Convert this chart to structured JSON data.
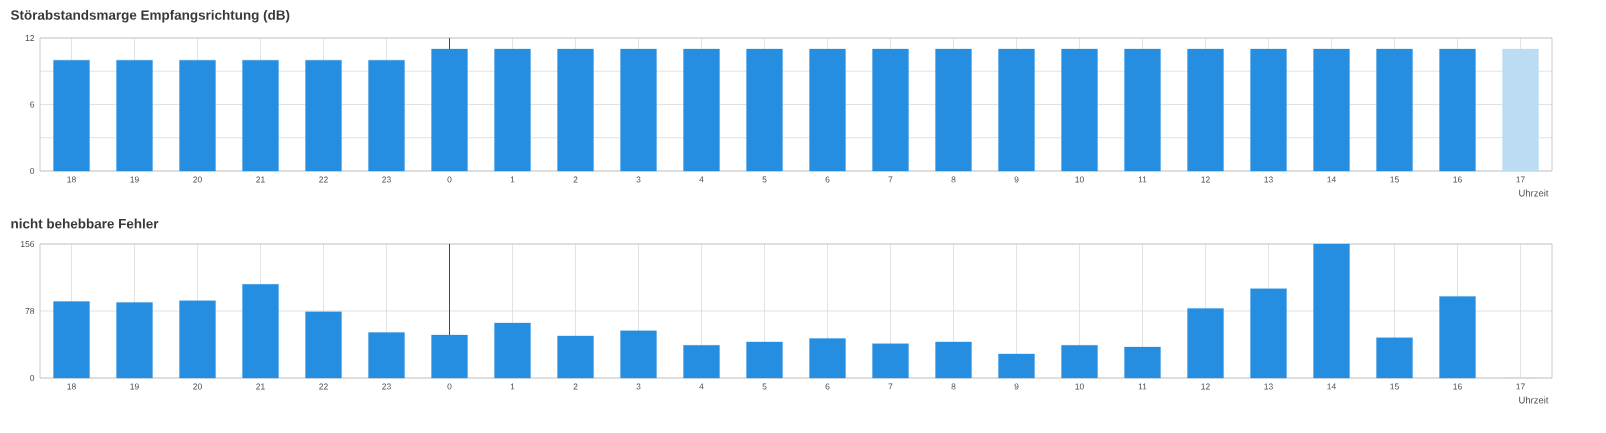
{
  "chart_data": [
    {
      "type": "bar",
      "title": "Störabstandsmarge Empfangsrichtung (dB)",
      "xlabel": "Uhrzeit",
      "categories": [
        "18",
        "19",
        "20",
        "21",
        "22",
        "23",
        "0",
        "1",
        "2",
        "3",
        "4",
        "5",
        "6",
        "7",
        "8",
        "9",
        "10",
        "11",
        "12",
        "13",
        "14",
        "15",
        "16",
        "17"
      ],
      "values": [
        10,
        10,
        10,
        10,
        10,
        10,
        11,
        11,
        11,
        11,
        11,
        11,
        11,
        11,
        11,
        11,
        11,
        11,
        11,
        11,
        11,
        11,
        11,
        11
      ],
      "colors": [
        "#268ee0",
        "#268ee0",
        "#268ee0",
        "#268ee0",
        "#268ee0",
        "#268ee0",
        "#268ee0",
        "#268ee0",
        "#268ee0",
        "#268ee0",
        "#268ee0",
        "#268ee0",
        "#268ee0",
        "#268ee0",
        "#268ee0",
        "#268ee0",
        "#268ee0",
        "#268ee0",
        "#268ee0",
        "#268ee0",
        "#268ee0",
        "#268ee0",
        "#268ee0",
        "#bcdcf3"
      ],
      "ylim": [
        0,
        12
      ],
      "yticks": [
        0,
        {
          "value": 3,
          "label": null
        },
        6,
        {
          "value": 9,
          "label": null
        },
        12
      ],
      "grid": true,
      "ref_lines": [
        {
          "axis": "x",
          "value": "0",
          "color": "#1d4f80"
        }
      ]
    },
    {
      "type": "bar",
      "title": "nicht behebbare Fehler",
      "xlabel": "Uhrzeit",
      "categories": [
        "18",
        "19",
        "20",
        "21",
        "22",
        "23",
        "0",
        "1",
        "2",
        "3",
        "4",
        "5",
        "6",
        "7",
        "8",
        "9",
        "10",
        "11",
        "12",
        "13",
        "14",
        "15",
        "16",
        "17"
      ],
      "values": [
        89,
        88,
        90,
        109,
        77,
        53,
        50,
        64,
        49,
        55,
        38,
        42,
        46,
        40,
        42,
        28,
        38,
        36,
        81,
        104,
        156,
        47,
        95,
        0
      ],
      "colors": [
        "#268ee0",
        "#268ee0",
        "#268ee0",
        "#268ee0",
        "#268ee0",
        "#268ee0",
        "#268ee0",
        "#268ee0",
        "#268ee0",
        "#268ee0",
        "#268ee0",
        "#268ee0",
        "#268ee0",
        "#268ee0",
        "#268ee0",
        "#268ee0",
        "#268ee0",
        "#268ee0",
        "#268ee0",
        "#268ee0",
        "#268ee0",
        "#268ee0",
        "#268ee0",
        "#bcdcf3"
      ],
      "ylim": [
        0,
        156
      ],
      "yticks": [
        0,
        78,
        156
      ],
      "grid": true,
      "ref_lines": [
        {
          "axis": "x",
          "value": "0",
          "color": "#1d4f80"
        }
      ]
    }
  ]
}
